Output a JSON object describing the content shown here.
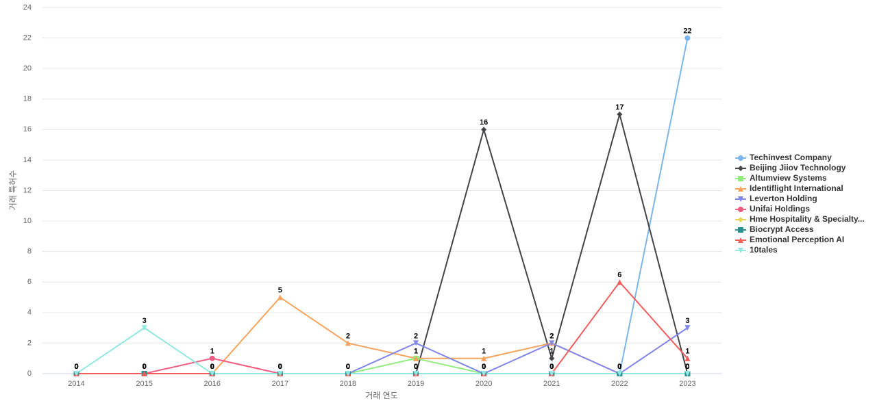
{
  "chart_data": {
    "type": "line",
    "x_label": "거래 연도",
    "y_label": "거래 특허수",
    "categories": [
      "2014",
      "2015",
      "2016",
      "2017",
      "2018",
      "2019",
      "2020",
      "2021",
      "2022",
      "2023"
    ],
    "ylim": [
      0,
      24
    ],
    "yticks": [
      0,
      2,
      4,
      6,
      8,
      10,
      12,
      14,
      16,
      18,
      20,
      22,
      24
    ],
    "grid": true,
    "legend": "right",
    "series": [
      {
        "name": "Techinvest Company",
        "color": "#7cb5ec",
        "marker": "circle",
        "values": [
          0,
          0,
          0,
          0,
          0,
          0,
          0,
          0,
          0,
          22
        ]
      },
      {
        "name": "Beijing Jiiov Technology",
        "color": "#434348",
        "marker": "diamond",
        "values": [
          0,
          0,
          0,
          0,
          0,
          0,
          16,
          1,
          17,
          0
        ]
      },
      {
        "name": "Altumview Systems",
        "color": "#90ed7d",
        "marker": "square",
        "values": [
          0,
          0,
          0,
          0,
          0,
          1,
          0,
          0,
          0,
          0
        ]
      },
      {
        "name": "Identiflight International",
        "color": "#f7a35c",
        "marker": "triangle",
        "values": [
          0,
          0,
          0,
          5,
          2,
          1,
          1,
          2,
          0,
          0
        ]
      },
      {
        "name": "Leverton Holding",
        "color": "#8085e9",
        "marker": "triangle-down",
        "values": [
          0,
          0,
          0,
          0,
          0,
          2,
          0,
          2,
          0,
          3
        ]
      },
      {
        "name": "Unifai Holdings",
        "color": "#f15c80",
        "marker": "circle",
        "values": [
          0,
          0,
          1,
          0,
          0,
          0,
          0,
          0,
          0,
          0
        ]
      },
      {
        "name": "Hme Hospitality & Specialty...",
        "color": "#e4d354",
        "marker": "diamond",
        "values": [
          0,
          0,
          0,
          0,
          0,
          0,
          0,
          0,
          0,
          0
        ]
      },
      {
        "name": "Biocrypt Access",
        "color": "#2b908f",
        "marker": "square",
        "values": [
          0,
          0,
          0,
          0,
          0,
          0,
          0,
          0,
          0,
          0
        ]
      },
      {
        "name": "Emotional Perception AI",
        "color": "#f45b5b",
        "marker": "triangle",
        "values": [
          0,
          0,
          0,
          0,
          0,
          0,
          0,
          0,
          6,
          1
        ]
      },
      {
        "name": "10tales",
        "color": "#91e8e1",
        "marker": "triangle-down",
        "values": [
          0,
          3,
          0,
          0,
          0,
          0,
          0,
          0,
          0,
          0
        ]
      }
    ]
  }
}
